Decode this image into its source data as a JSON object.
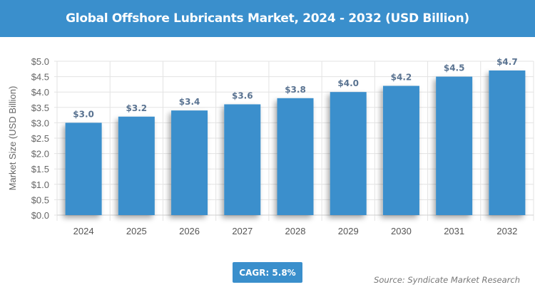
{
  "title": "Global Offshore Lubricants Market, 2024 - 2032 (USD Billion)",
  "cagr_label": "CAGR: 5.8%",
  "source": "Source: Syndicate Market Research",
  "colors": {
    "bar": "#3a8fcc",
    "header": "#3a8fcc",
    "data_label": "#5a7391"
  },
  "chart_data": {
    "type": "bar",
    "title": "Global Offshore Lubricants Market, 2024 - 2032 (USD Billion)",
    "xlabel": "",
    "ylabel": "Market Size (USD Billion)",
    "categories": [
      "2024",
      "2025",
      "2026",
      "2027",
      "2028",
      "2029",
      "2030",
      "2031",
      "2032"
    ],
    "values": [
      3.0,
      3.2,
      3.4,
      3.6,
      3.8,
      4.0,
      4.2,
      4.5,
      4.7
    ],
    "data_labels": [
      "$3.0",
      "$3.2",
      "$3.4",
      "$3.6",
      "$3.8",
      "$4.0",
      "$4.2",
      "$4.5",
      "$4.7"
    ],
    "yticks": [
      "$0.0",
      "$0.5",
      "$1.0",
      "$1.5",
      "$2.0",
      "$2.5",
      "$3.0",
      "$3.5",
      "$4.0",
      "$4.5",
      "$5.0"
    ],
    "ylim": [
      0,
      5
    ],
    "grid": true
  }
}
